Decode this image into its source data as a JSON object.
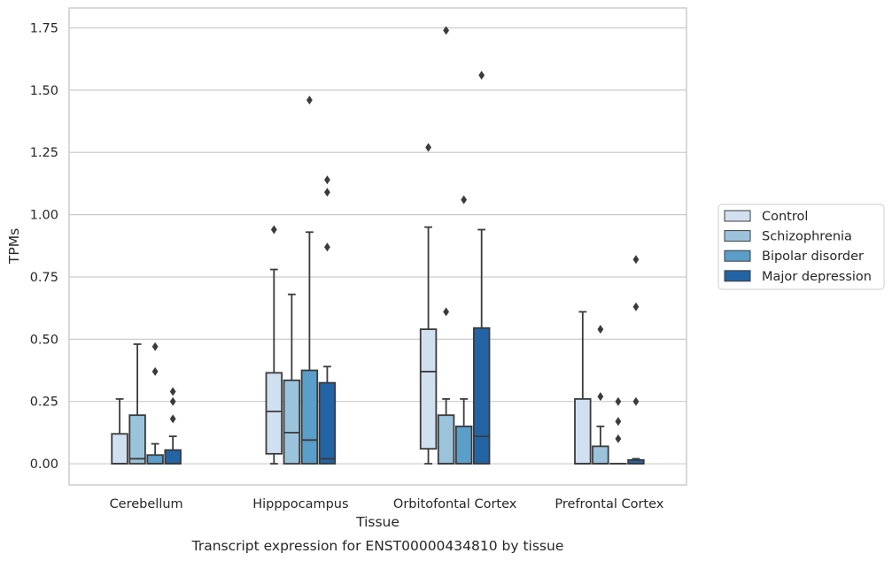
{
  "chart_data": {
    "type": "box",
    "caption": "Transcript expression for ENST00000434810 by tissue",
    "xlabel": "Tissue",
    "ylabel": "TPMs",
    "ylim": [
      -0.085,
      1.83
    ],
    "yticks": [
      0.0,
      0.25,
      0.5,
      0.75,
      1.0,
      1.25,
      1.5,
      1.75
    ],
    "ytick_labels": [
      "0.00",
      "0.25",
      "0.50",
      "0.75",
      "1.00",
      "1.25",
      "1.50",
      "1.75"
    ],
    "grid": "horizontal",
    "legend_position": "outside-right",
    "categories": [
      "Cerebellum",
      "Hipppocampus",
      "Orbitofontal Cortex",
      "Prefrontal Cortex"
    ],
    "series": [
      {
        "name": "Control",
        "color": "#d1e0f0",
        "boxes": [
          {
            "whisker_low": 0.0,
            "q1": 0.0,
            "median": 0.0,
            "q3": 0.12,
            "whisker_high": 0.26,
            "outliers": []
          },
          {
            "whisker_low": 0.0,
            "q1": 0.04,
            "median": 0.21,
            "q3": 0.365,
            "whisker_high": 0.78,
            "outliers": [
              0.94
            ]
          },
          {
            "whisker_low": 0.0,
            "q1": 0.06,
            "median": 0.37,
            "q3": 0.54,
            "whisker_high": 0.95,
            "outliers": [
              1.27
            ]
          },
          {
            "whisker_low": 0.0,
            "q1": 0.0,
            "median": 0.0,
            "q3": 0.26,
            "whisker_high": 0.61,
            "outliers": []
          }
        ]
      },
      {
        "name": "Schizophrenia",
        "color": "#9cc3dc",
        "boxes": [
          {
            "whisker_low": 0.0,
            "q1": 0.0,
            "median": 0.02,
            "q3": 0.195,
            "whisker_high": 0.48,
            "outliers": []
          },
          {
            "whisker_low": 0.0,
            "q1": 0.0,
            "median": 0.125,
            "q3": 0.335,
            "whisker_high": 0.68,
            "outliers": []
          },
          {
            "whisker_low": 0.0,
            "q1": 0.0,
            "median": 0.0,
            "q3": 0.195,
            "whisker_high": 0.26,
            "outliers": [
              0.61,
              1.74
            ]
          },
          {
            "whisker_low": 0.0,
            "q1": 0.0,
            "median": 0.0,
            "q3": 0.07,
            "whisker_high": 0.15,
            "outliers": [
              0.27,
              0.54
            ]
          }
        ]
      },
      {
        "name": "Bipolar disorder",
        "color": "#5a9ec9",
        "boxes": [
          {
            "whisker_low": 0.0,
            "q1": 0.0,
            "median": 0.0,
            "q3": 0.035,
            "whisker_high": 0.08,
            "outliers": [
              0.37,
              0.47
            ]
          },
          {
            "whisker_low": 0.0,
            "q1": 0.0,
            "median": 0.095,
            "q3": 0.375,
            "whisker_high": 0.93,
            "outliers": [
              1.46
            ]
          },
          {
            "whisker_low": 0.0,
            "q1": 0.0,
            "median": 0.0,
            "q3": 0.15,
            "whisker_high": 0.26,
            "outliers": [
              1.06
            ]
          },
          {
            "whisker_low": 0.0,
            "q1": 0.0,
            "median": 0.0,
            "q3": 0.0,
            "whisker_high": 0.0,
            "outliers": [
              0.1,
              0.17,
              0.25
            ]
          }
        ]
      },
      {
        "name": "Major depression",
        "color": "#2364a7",
        "boxes": [
          {
            "whisker_low": 0.0,
            "q1": 0.0,
            "median": 0.0,
            "q3": 0.055,
            "whisker_high": 0.11,
            "outliers": [
              0.18,
              0.25,
              0.29
            ]
          },
          {
            "whisker_low": 0.0,
            "q1": 0.0,
            "median": 0.02,
            "q3": 0.325,
            "whisker_high": 0.39,
            "outliers": [
              0.87,
              1.09,
              1.14
            ]
          },
          {
            "whisker_low": 0.0,
            "q1": 0.0,
            "median": 0.11,
            "q3": 0.545,
            "whisker_high": 0.94,
            "outliers": [
              1.56
            ]
          },
          {
            "whisker_low": 0.0,
            "q1": 0.0,
            "median": 0.0,
            "q3": 0.015,
            "whisker_high": 0.02,
            "outliers": [
              0.25,
              0.63,
              0.82
            ]
          }
        ]
      }
    ]
  }
}
